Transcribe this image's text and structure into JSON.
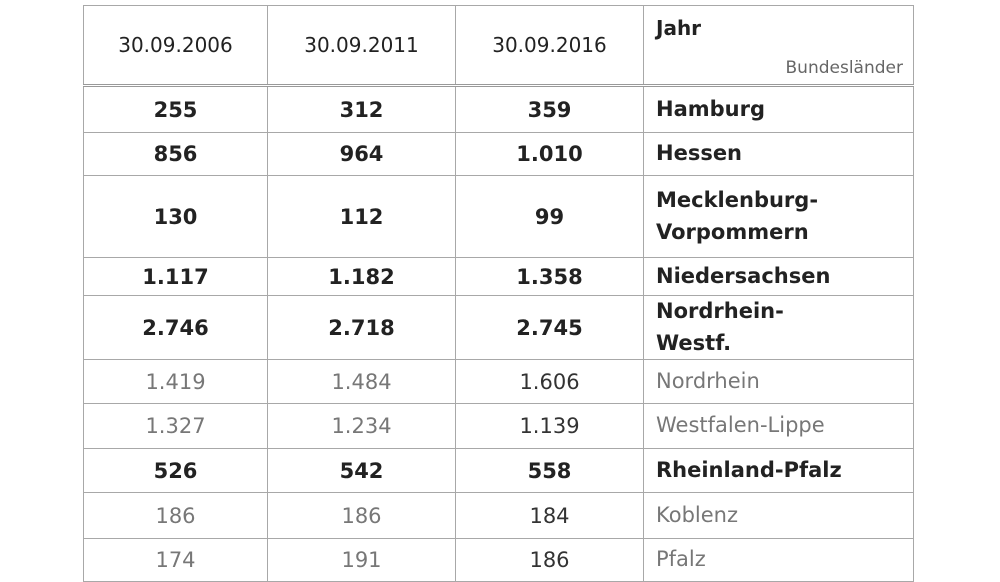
{
  "header": {
    "columns": [
      "30.09.2006",
      "30.09.2011",
      "30.09.2016"
    ],
    "corner_top": "Jahr",
    "corner_bottom": "Bundesländer"
  },
  "table": {
    "rows": [
      [
        "255",
        "312",
        "359",
        "Hamburg"
      ],
      [
        "856",
        "964",
        "1.010",
        "Hessen"
      ],
      [
        "130",
        "112",
        "99",
        "Mecklenburg-Vorpommern"
      ],
      [
        "1.117",
        "1.182",
        "1.358",
        "Niedersachsen"
      ],
      [
        "2.746",
        "2.718",
        "2.745",
        "Nordrhein-Westf."
      ],
      [
        "1.419",
        "1.484",
        "1.606",
        "Nordrhein"
      ],
      [
        "1.327",
        "1.234",
        "1.139",
        "Westfalen-Lippe"
      ],
      [
        "526",
        "542",
        "558",
        "Rheinland-Pfalz"
      ],
      [
        "186",
        "186",
        "184",
        "Koblenz"
      ],
      [
        "174",
        "191",
        "186",
        "Pfalz"
      ]
    ]
  }
}
